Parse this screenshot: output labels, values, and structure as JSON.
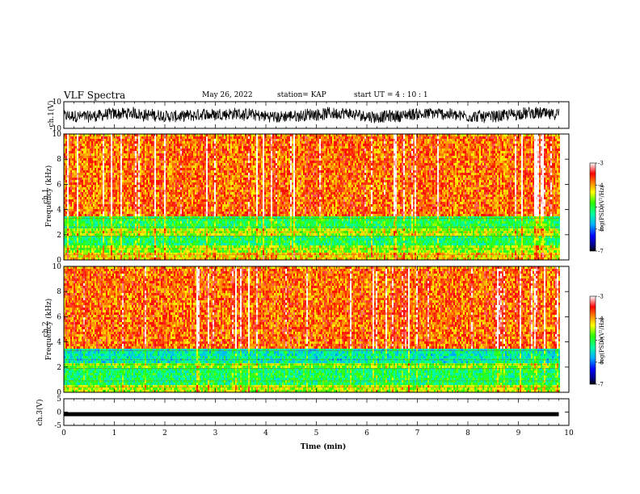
{
  "header": {
    "title": "VLF Spectra",
    "date": "May 26, 2022",
    "station": "station= KAP",
    "start": "start  UT =   4 : 10 : 1"
  },
  "chart_data": [
    {
      "type": "line",
      "panel": "ch1-waveform",
      "ylabel": "ch.1(V)",
      "ylim": [
        -10,
        10
      ],
      "yticks": [
        "10",
        "-10"
      ],
      "xlim": [
        0,
        10
      ],
      "description_series": "noisy signal fluctuating roughly between -5 and 6 V over 0-9.8 min",
      "x_end": 9.8
    },
    {
      "type": "heatmap",
      "panel": "ch1-spectrogram",
      "ylabel": [
        "ch.1",
        "Frequency  (kHz)"
      ],
      "ylim": [
        0,
        10
      ],
      "yticks": [
        "0",
        "2",
        "4",
        "6",
        "8",
        "10"
      ],
      "xlim": [
        0,
        10
      ],
      "x_end": 9.8,
      "colorbar": {
        "label": "log(PSD)(V²/Hz)",
        "range": [
          -7,
          -3
        ],
        "ticks": [
          "-3",
          "-4",
          "-5",
          "-6",
          "-7"
        ]
      },
      "bands_log_psd": [
        {
          "freq_khz": [
            0,
            0.6
          ],
          "level": -4.2
        },
        {
          "freq_khz": [
            0.6,
            1.3
          ],
          "level": -4.6
        },
        {
          "freq_khz": [
            1.3,
            2.0
          ],
          "level": -5.1
        },
        {
          "freq_khz": [
            2.0,
            2.6
          ],
          "level": -4.5
        },
        {
          "freq_khz": [
            2.6,
            3.5
          ],
          "level": -5.0
        },
        {
          "freq_khz": [
            3.5,
            10
          ],
          "level": -3.8
        }
      ]
    },
    {
      "type": "heatmap",
      "panel": "ch2-spectrogram",
      "ylabel": [
        "ch.2",
        "Frequency  (kHz)"
      ],
      "ylim": [
        0,
        10
      ],
      "yticks": [
        "0",
        "2",
        "4",
        "6",
        "8",
        "10"
      ],
      "xlim": [
        0,
        10
      ],
      "x_end": 9.8,
      "colorbar": {
        "label": "log(PSD)(V²/Hz)",
        "range": [
          -7,
          -3
        ],
        "ticks": [
          "-3",
          "-4",
          "-5",
          "-6",
          "-7"
        ]
      },
      "bands_log_psd": [
        {
          "freq_khz": [
            0,
            0.6
          ],
          "level": -4.5
        },
        {
          "freq_khz": [
            0.6,
            2.0
          ],
          "level": -5.1
        },
        {
          "freq_khz": [
            2.0,
            2.4
          ],
          "level": -4.7
        },
        {
          "freq_khz": [
            2.4,
            3.6
          ],
          "level": -5.4
        },
        {
          "freq_khz": [
            3.6,
            10
          ],
          "level": -3.8
        }
      ]
    },
    {
      "type": "line",
      "panel": "ch3-waveform",
      "ylabel": "ch.3(V)",
      "ylim": [
        -5,
        5
      ],
      "yticks": [
        "5",
        "0",
        "-5"
      ],
      "xlim": [
        0,
        10
      ],
      "x_end": 9.8,
      "level_v": -0.8
    }
  ],
  "xaxis": {
    "label": "Time  (min)",
    "ticks": [
      "0",
      "1",
      "2",
      "3",
      "4",
      "5",
      "6",
      "7",
      "8",
      "9",
      "10"
    ]
  }
}
